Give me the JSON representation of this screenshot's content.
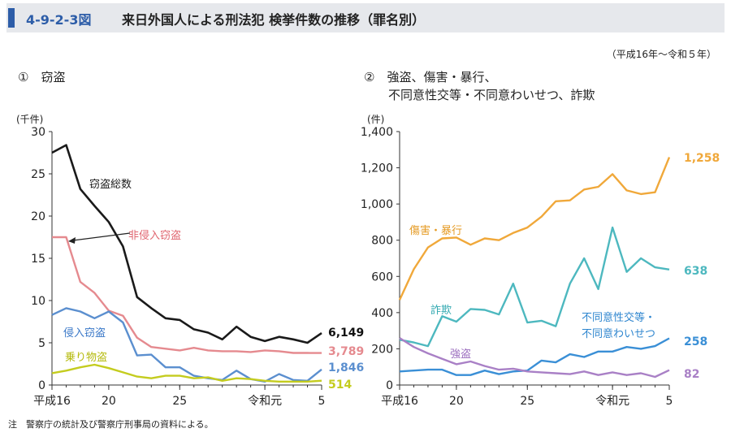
{
  "header": {
    "figure_number": "4-9-2-3図",
    "title": "来日外国人による刑法犯 検挙件数の推移（罪名別）"
  },
  "period_note": "（平成16年～令和５年）",
  "footnote": "注　警察庁の統計及び警察庁刑事局の資料による。",
  "chart_data": [
    {
      "type": "line",
      "panel_label": "①　窃盗",
      "unit_label": "(千件)",
      "x": [
        2004,
        2005,
        2006,
        2007,
        2008,
        2009,
        2010,
        2011,
        2012,
        2013,
        2014,
        2015,
        2016,
        2017,
        2018,
        2019,
        2020,
        2021,
        2022,
        2023
      ],
      "xticks": [
        {
          "x": 2004,
          "label": "平成16"
        },
        {
          "x": 2008,
          "label": "20"
        },
        {
          "x": 2013,
          "label": "25"
        },
        {
          "x": 2019,
          "label": "令和元"
        },
        {
          "x": 2023,
          "label": "5"
        }
      ],
      "xlim": [
        2004,
        2023
      ],
      "ylim": [
        0,
        30
      ],
      "yticks": [
        0,
        5,
        10,
        15,
        20,
        25,
        30
      ],
      "series": [
        {
          "name": "窃盗総数",
          "color": "#1a1a1a",
          "values": [
            27.5,
            28.4,
            23.2,
            21.2,
            19.3,
            16.4,
            10.4,
            9.1,
            7.9,
            7.7,
            6.6,
            6.2,
            5.4,
            6.9,
            5.7,
            5.2,
            5.7,
            5.4,
            5.0,
            6.149
          ],
          "end_label": "6,149"
        },
        {
          "name": "非侵入窃盗",
          "color": "#e58a8f",
          "values": [
            17.5,
            17.5,
            12.2,
            10.9,
            8.8,
            8.2,
            5.6,
            4.5,
            4.3,
            4.1,
            4.4,
            4.1,
            4.0,
            4.0,
            3.9,
            4.1,
            4.0,
            3.8,
            3.8,
            3.789
          ],
          "end_label": "3,789"
        },
        {
          "name": "侵入窃盗",
          "color": "#5b8fcf",
          "values": [
            8.3,
            9.1,
            8.7,
            7.9,
            8.7,
            7.4,
            3.5,
            3.6,
            2.1,
            2.1,
            1.1,
            0.8,
            0.6,
            1.7,
            0.7,
            0.4,
            1.3,
            0.6,
            0.5,
            1.846
          ],
          "end_label": "1,846"
        },
        {
          "name": "乗り物盗",
          "color": "#c4cc1e",
          "values": [
            1.4,
            1.7,
            2.1,
            2.4,
            2.0,
            1.5,
            1.0,
            0.8,
            1.1,
            1.1,
            0.8,
            0.9,
            0.5,
            0.8,
            0.7,
            0.5,
            0.4,
            0.4,
            0.4,
            0.514
          ],
          "end_label": "514"
        }
      ]
    },
    {
      "type": "line",
      "panel_label": "②　強盗、傷害・暴行、",
      "panel_label_line2": "不同意性交等・不同意わいせつ、詐欺",
      "unit_label": "(件)",
      "x": [
        2004,
        2005,
        2006,
        2007,
        2008,
        2009,
        2010,
        2011,
        2012,
        2013,
        2014,
        2015,
        2016,
        2017,
        2018,
        2019,
        2020,
        2021,
        2022,
        2023
      ],
      "xticks": [
        {
          "x": 2004,
          "label": "平成16"
        },
        {
          "x": 2008,
          "label": "20"
        },
        {
          "x": 2013,
          "label": "25"
        },
        {
          "x": 2019,
          "label": "令和元"
        },
        {
          "x": 2023,
          "label": "5"
        }
      ],
      "xlim": [
        2004,
        2023
      ],
      "ylim": [
        0,
        1400
      ],
      "yticks": [
        0,
        200,
        400,
        600,
        800,
        1000,
        1200,
        1400
      ],
      "ytick_labels": [
        "0",
        "200",
        "400",
        "600",
        "800",
        "1,000",
        "1,200",
        "1,400"
      ],
      "series": [
        {
          "name": "傷害・暴行",
          "color": "#f0a83a",
          "values": [
            470,
            640,
            760,
            810,
            815,
            775,
            810,
            800,
            840,
            870,
            930,
            1015,
            1020,
            1080,
            1095,
            1165,
            1075,
            1055,
            1065,
            1258
          ],
          "end_label": "1,258"
        },
        {
          "name": "詐欺",
          "color": "#4db8bf",
          "values": [
            250,
            235,
            215,
            380,
            350,
            420,
            415,
            390,
            560,
            345,
            355,
            325,
            560,
            700,
            530,
            870,
            625,
            700,
            650,
            638
          ],
          "end_label": "638"
        },
        {
          "name": "不同意性交等・不同意わいせつ",
          "legend_line1": "不同意性交等・",
          "legend_line2": "不同意わいせつ",
          "color": "#3a8fd6",
          "values": [
            75,
            80,
            85,
            85,
            55,
            55,
            80,
            60,
            75,
            80,
            135,
            125,
            170,
            155,
            185,
            185,
            210,
            200,
            215,
            258
          ],
          "end_label": "258"
        },
        {
          "name": "強盗",
          "color": "#a980c6",
          "values": [
            260,
            210,
            175,
            145,
            115,
            130,
            105,
            85,
            90,
            75,
            70,
            65,
            60,
            75,
            55,
            70,
            55,
            65,
            45,
            82
          ],
          "end_label": "82"
        }
      ]
    }
  ]
}
